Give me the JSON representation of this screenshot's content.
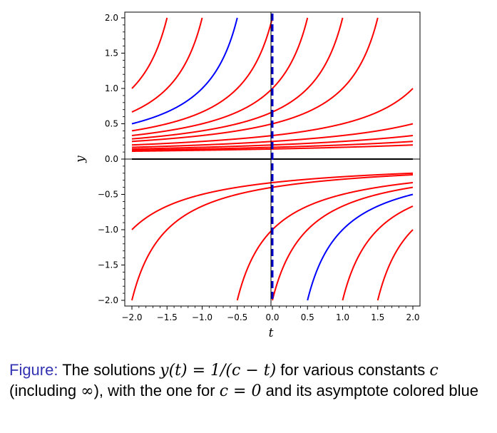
{
  "chart_data": {
    "type": "line",
    "title": "",
    "xlabel": "t",
    "ylabel": "y",
    "xlim": [
      -2.0,
      2.0
    ],
    "ylim": [
      -2.0,
      2.0
    ],
    "xticks": [
      "−2.0",
      "−1.5",
      "−1.0",
      "−0.5",
      "0.0",
      "0.5",
      "1.0",
      "1.5",
      "2.0"
    ],
    "yticks": [
      "−2.0",
      "−1.5",
      "−1.0",
      "−0.5",
      "0.0",
      "0.5",
      "1.0",
      "1.5",
      "2.0"
    ],
    "function": "y = 1/(c - t)",
    "series": [
      {
        "c": -3,
        "color": "#ff0000"
      },
      {
        "c": -2.5,
        "color": "#ff0000"
      },
      {
        "c": -1,
        "color": "#ff0000"
      },
      {
        "c": -0.5,
        "color": "#ff0000"
      },
      {
        "c": 0,
        "color": "#0000ff"
      },
      {
        "c": 0.5,
        "color": "#ff0000"
      },
      {
        "c": 1,
        "color": "#ff0000"
      },
      {
        "c": 1.5,
        "color": "#ff0000"
      },
      {
        "c": 2,
        "color": "#ff0000"
      },
      {
        "c": 3,
        "color": "#ff0000"
      },
      {
        "c": 4,
        "color": "#ff0000"
      },
      {
        "c": 5,
        "color": "#ff0000"
      },
      {
        "c": 6,
        "color": "#ff0000"
      },
      {
        "c": 7,
        "color": "#ff0000"
      },
      {
        "c": "infinity",
        "color": "#000000"
      }
    ],
    "asymptote": {
      "t": 0,
      "color": "#0000cc",
      "style": "dashed"
    },
    "grid": false
  },
  "caption": {
    "prefix": "Figure:",
    "text1": " The solutions ",
    "formula": "y(t) = 1/(c − t)",
    "text2": " for various constants ",
    "c_symbol": "c",
    "text3": " (including ",
    "infinity": "∞",
    "text4": "), with the one for ",
    "c_eq": "c = 0",
    "text5": " and its asymptote colored blue"
  }
}
